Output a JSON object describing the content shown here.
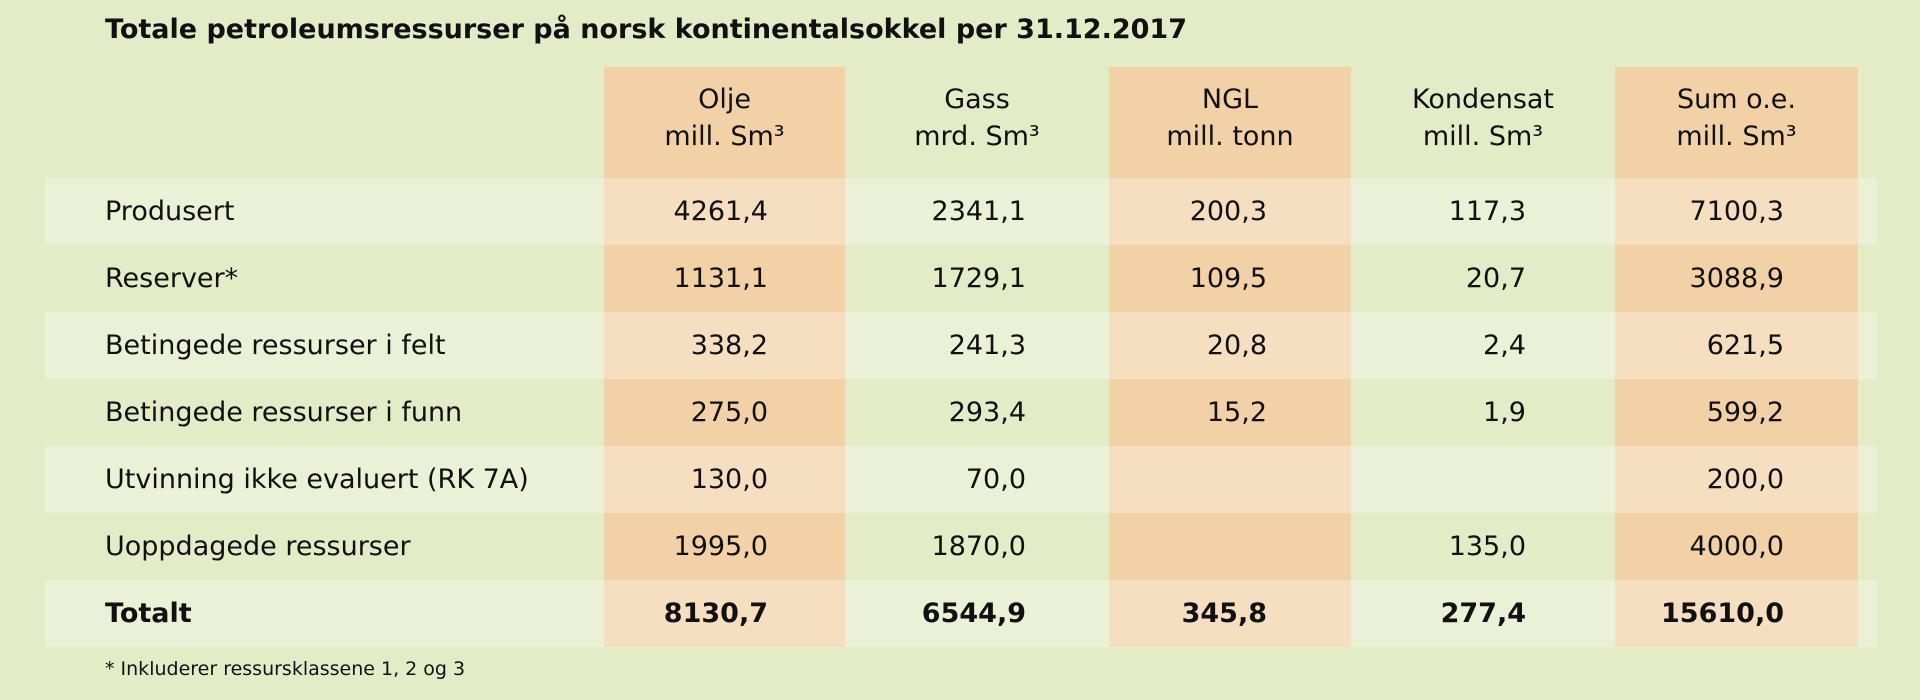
{
  "title": "Totale petroleumsressurser på norsk kontinentalsokkel per 31.12.2017",
  "table": {
    "columns": [
      [
        "Olje",
        "mill. Sm³"
      ],
      [
        "Gass",
        "mrd. Sm³"
      ],
      [
        "NGL",
        "mill. tonn"
      ],
      [
        "Kondensat",
        "mill. Sm³"
      ],
      [
        "Sum o.e.",
        "mill. Sm³"
      ]
    ],
    "rows": [
      [
        "Produsert",
        "4261,4",
        "2341,1",
        "200,3",
        "117,3",
        "7100,3"
      ],
      [
        "Reserver*",
        "1131,1",
        "1729,1",
        "109,5",
        "20,7",
        "3088,9"
      ],
      [
        "Betingede ressurser i felt",
        "338,2",
        "241,3",
        "20,8",
        "2,4",
        "621,5"
      ],
      [
        "Betingede ressurser i funn",
        "275,0",
        "293,4",
        "15,2",
        "1,9",
        "599,2"
      ],
      [
        "Utvinning ikke evaluert (RK 7A)",
        "130,0",
        "70,0",
        null,
        null,
        "200,0"
      ],
      [
        "Uoppdagede ressurser",
        "1995,0",
        "1870,0",
        null,
        "135,0",
        "4000,0"
      ]
    ],
    "total_row": [
      "Totalt",
      "8130,7",
      "6544,9",
      "345,8",
      "277,4",
      "15610,0"
    ]
  },
  "footnote": "* Inkluderer ressursklassene 1, 2 og 3"
}
